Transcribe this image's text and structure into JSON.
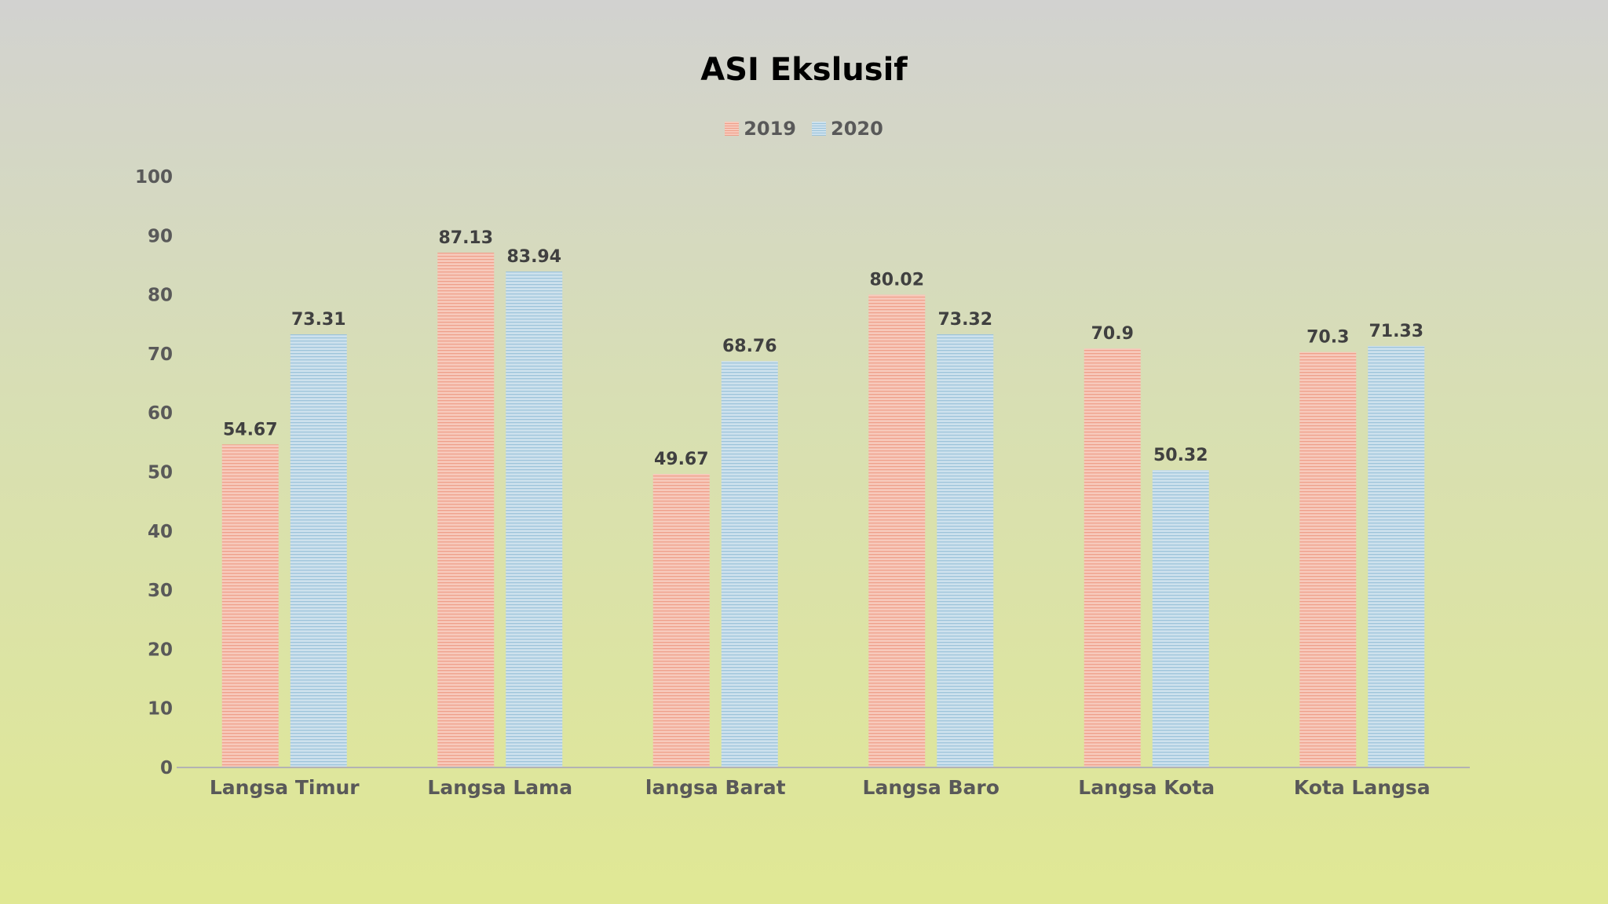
{
  "chart_data": {
    "type": "bar",
    "title": "ASI Ekslusif",
    "categories": [
      "Langsa Timur",
      "Langsa Lama",
      "langsa Barat",
      "Langsa Baro",
      "Langsa Kota",
      "Kota Langsa"
    ],
    "series": [
      {
        "name": "2019",
        "values": [
          54.67,
          87.13,
          49.67,
          80.02,
          70.9,
          70.3
        ],
        "labels": [
          "54.67",
          "87.13",
          "49.67",
          "80.02",
          "70.9",
          "70.3"
        ],
        "color": "#f3b7a5"
      },
      {
        "name": "2020",
        "values": [
          73.31,
          83.94,
          68.76,
          73.32,
          50.32,
          71.33
        ],
        "labels": [
          "73.31",
          "83.94",
          "68.76",
          "73.32",
          "50.32",
          "71.33"
        ],
        "color": "#b7d3e3"
      }
    ],
    "ylim": [
      0,
      100
    ],
    "yticks": [
      0,
      10,
      20,
      30,
      40,
      50,
      60,
      70,
      80,
      90,
      100
    ],
    "xlabel": "",
    "ylabel": "",
    "grid": false,
    "legend_position": "top-center"
  },
  "colors": {
    "axis_line": "#b3b3b3",
    "tick_label": "#595959",
    "data_label": "#404040",
    "title": "#000000"
  }
}
